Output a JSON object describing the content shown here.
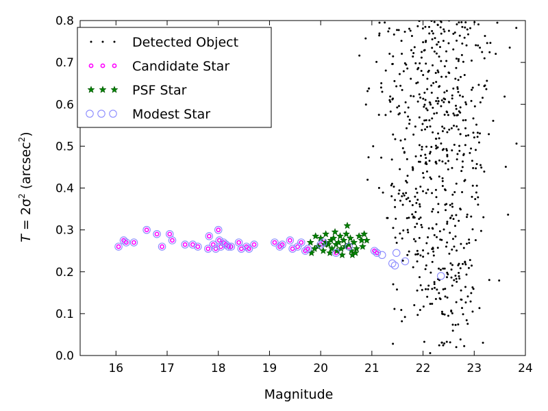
{
  "chart_data": {
    "type": "scatter",
    "xlabel": "Magnitude",
    "ylabel": {
      "pre": "T",
      "eq": " = 2σ",
      "sup1": "2",
      "unit": " (arcsec",
      "sup2": "2",
      "close": ")"
    },
    "xlim": [
      15.3,
      24
    ],
    "ylim": [
      0.0,
      0.8
    ],
    "x_ticks": [
      16,
      17,
      18,
      19,
      20,
      21,
      22,
      23,
      24
    ],
    "y_ticks": [
      "0.0",
      "0.1",
      "0.2",
      "0.3",
      "0.4",
      "0.5",
      "0.6",
      "0.7",
      "0.8"
    ],
    "grid": false,
    "legend_position": "top-left",
    "series": [
      {
        "name": "Detected Object",
        "marker": "dot",
        "color": "#000000",
        "generated_points_in_region": {
          "x_range": [
            19.0,
            23.95
          ],
          "y_range": [
            0.0,
            0.8
          ],
          "count": 640
        }
      },
      {
        "name": "Candidate Star",
        "marker": "circle",
        "color": "#ff00ff",
        "points": [
          [
            16.05,
            0.26
          ],
          [
            16.15,
            0.275
          ],
          [
            16.2,
            0.27
          ],
          [
            16.35,
            0.27
          ],
          [
            16.6,
            0.3
          ],
          [
            16.8,
            0.29
          ],
          [
            16.9,
            0.26
          ],
          [
            17.05,
            0.29
          ],
          [
            17.1,
            0.275
          ],
          [
            17.35,
            0.265
          ],
          [
            17.5,
            0.265
          ],
          [
            17.6,
            0.26
          ],
          [
            17.8,
            0.255
          ],
          [
            17.82,
            0.285
          ],
          [
            17.9,
            0.265
          ],
          [
            17.95,
            0.255
          ],
          [
            18.0,
            0.3
          ],
          [
            18.02,
            0.275
          ],
          [
            18.05,
            0.26
          ],
          [
            18.1,
            0.27
          ],
          [
            18.15,
            0.265
          ],
          [
            18.2,
            0.26
          ],
          [
            18.25,
            0.26
          ],
          [
            18.4,
            0.27
          ],
          [
            18.45,
            0.255
          ],
          [
            18.55,
            0.26
          ],
          [
            18.6,
            0.255
          ],
          [
            18.7,
            0.265
          ],
          [
            19.1,
            0.27
          ],
          [
            19.2,
            0.26
          ],
          [
            19.25,
            0.265
          ],
          [
            19.4,
            0.275
          ],
          [
            19.45,
            0.255
          ],
          [
            19.55,
            0.26
          ],
          [
            19.62,
            0.27
          ],
          [
            19.7,
            0.25
          ],
          [
            19.75,
            0.255
          ],
          [
            20.0,
            0.265
          ],
          [
            20.05,
            0.27
          ],
          [
            20.3,
            0.245
          ],
          [
            20.55,
            0.26
          ],
          [
            21.05,
            0.25
          ],
          [
            21.1,
            0.245
          ]
        ]
      },
      {
        "name": "PSF Star",
        "marker": "star",
        "color": "#008000",
        "points": [
          [
            19.8,
            0.27
          ],
          [
            19.82,
            0.245
          ],
          [
            19.9,
            0.285
          ],
          [
            19.95,
            0.26
          ],
          [
            20.0,
            0.28
          ],
          [
            20.05,
            0.25
          ],
          [
            20.1,
            0.27
          ],
          [
            20.1,
            0.29
          ],
          [
            20.15,
            0.265
          ],
          [
            20.2,
            0.275
          ],
          [
            20.22,
            0.255
          ],
          [
            20.25,
            0.28
          ],
          [
            20.28,
            0.295
          ],
          [
            20.3,
            0.265
          ],
          [
            20.32,
            0.25
          ],
          [
            20.35,
            0.27
          ],
          [
            20.38,
            0.285
          ],
          [
            20.4,
            0.255
          ],
          [
            20.42,
            0.24
          ],
          [
            20.45,
            0.275
          ],
          [
            20.48,
            0.26
          ],
          [
            20.5,
            0.29
          ],
          [
            20.52,
            0.31
          ],
          [
            20.55,
            0.265
          ],
          [
            20.58,
            0.28
          ],
          [
            20.6,
            0.25
          ],
          [
            20.62,
            0.24
          ],
          [
            20.65,
            0.27
          ],
          [
            20.7,
            0.255
          ],
          [
            20.75,
            0.285
          ],
          [
            20.8,
            0.275
          ],
          [
            20.82,
            0.26
          ],
          [
            20.85,
            0.29
          ],
          [
            20.9,
            0.275
          ],
          [
            20.18,
            0.245
          ],
          [
            20.68,
            0.245
          ],
          [
            19.88,
            0.255
          ],
          [
            20.08,
            0.265
          ]
        ]
      },
      {
        "name": "Modest Star",
        "marker": "ring",
        "color": "#8888ff",
        "points": [
          [
            16.05,
            0.26
          ],
          [
            16.15,
            0.275
          ],
          [
            16.2,
            0.27
          ],
          [
            16.35,
            0.27
          ],
          [
            16.6,
            0.3
          ],
          [
            16.8,
            0.29
          ],
          [
            16.9,
            0.26
          ],
          [
            17.05,
            0.29
          ],
          [
            17.1,
            0.275
          ],
          [
            17.35,
            0.265
          ],
          [
            17.5,
            0.265
          ],
          [
            17.6,
            0.26
          ],
          [
            17.8,
            0.255
          ],
          [
            17.82,
            0.285
          ],
          [
            17.9,
            0.265
          ],
          [
            17.95,
            0.255
          ],
          [
            18.0,
            0.3
          ],
          [
            18.02,
            0.275
          ],
          [
            18.05,
            0.26
          ],
          [
            18.1,
            0.27
          ],
          [
            18.15,
            0.265
          ],
          [
            18.2,
            0.26
          ],
          [
            18.25,
            0.26
          ],
          [
            18.4,
            0.27
          ],
          [
            18.45,
            0.255
          ],
          [
            18.55,
            0.26
          ],
          [
            18.6,
            0.255
          ],
          [
            18.7,
            0.265
          ],
          [
            19.1,
            0.27
          ],
          [
            19.2,
            0.26
          ],
          [
            19.25,
            0.265
          ],
          [
            19.4,
            0.275
          ],
          [
            19.45,
            0.255
          ],
          [
            19.55,
            0.26
          ],
          [
            19.62,
            0.27
          ],
          [
            19.7,
            0.25
          ],
          [
            19.75,
            0.255
          ],
          [
            20.0,
            0.265
          ],
          [
            20.05,
            0.27
          ],
          [
            20.3,
            0.245
          ],
          [
            20.55,
            0.26
          ],
          [
            21.05,
            0.25
          ],
          [
            21.1,
            0.245
          ],
          [
            21.2,
            0.24
          ],
          [
            21.4,
            0.22
          ],
          [
            21.45,
            0.215
          ],
          [
            21.48,
            0.245
          ],
          [
            21.65,
            0.225
          ],
          [
            22.35,
            0.19
          ]
        ]
      }
    ]
  }
}
